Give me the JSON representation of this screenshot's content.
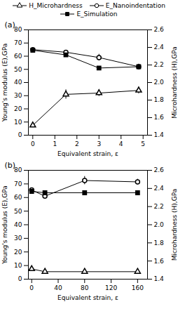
{
  "chart_data": [
    {
      "type": "line",
      "title": "(a)",
      "xlabel": "Equivalent strain, ε",
      "ylabel": "Young's modulus (E),GPa",
      "y2label": "Microhardness (H),GPa",
      "x": [
        0,
        1.5,
        3.0,
        4.8
      ],
      "xlim": [
        -0.2,
        5.2
      ],
      "xticks": [
        0,
        1,
        2,
        3,
        4,
        5
      ],
      "ylim": [
        0,
        80
      ],
      "yticks": [
        0,
        10,
        20,
        30,
        40,
        50,
        60,
        70,
        80
      ],
      "y2lim": [
        1.4,
        2.6
      ],
      "y2ticks": [
        1.4,
        1.6,
        1.8,
        {
          "value": 2.0,
          "label": "2.0"
        },
        2.2,
        2.4,
        2.6
      ],
      "legend": "top",
      "series": [
        {
          "name": "H_Microhardness",
          "color": "#000000",
          "marker": "triangle_open",
          "values": [
            7.5,
            31.0,
            32.0,
            34.0
          ],
          "errors": [
            1.0,
            3.5,
            2.5,
            2.5
          ]
        },
        {
          "name": "E_Nanoindentation",
          "color": "#000000",
          "marker": "circle_open",
          "values": [
            65.0,
            63.0,
            59.0,
            52.0
          ],
          "errors": [
            1.5,
            1.5,
            2.5,
            2.0
          ]
        },
        {
          "name": "E_Simulation",
          "color": "#000000",
          "marker": "square",
          "values": [
            64.5,
            61.0,
            51.0,
            52.0
          ],
          "errors": [
            0.5,
            0.8,
            0.8,
            0.8
          ]
        }
      ]
    },
    {
      "type": "line",
      "title": "(b)",
      "xlabel": "Equivalent strain, ε",
      "ylabel": "Young's modulus (E),GPa",
      "y2label": "Microhardness (H),GPa",
      "x": [
        0,
        20,
        80,
        160
      ],
      "xlim": [
        -5,
        175
      ],
      "xticks": [
        0,
        40,
        80,
        120,
        160
      ],
      "ylim": [
        0,
        80
      ],
      "yticks": [
        0,
        10,
        20,
        30,
        40,
        50,
        60,
        70,
        80
      ],
      "y2lim": [
        1.4,
        2.6
      ],
      "y2ticks": [
        1.4,
        1.6,
        1.8,
        {
          "value": 2.0,
          "label": "2.0"
        },
        2.2,
        2.4,
        2.6
      ],
      "legend": false,
      "series": [
        {
          "name": "H_Microhardness",
          "color": "#000000",
          "marker": "triangle_open",
          "values": [
            7.5,
            5.5,
            5.5,
            5.5
          ],
          "errors": [
            1.0,
            0.8,
            0.8,
            0.8
          ]
        },
        {
          "name": "E_Nanoindentation",
          "color": "#000000",
          "marker": "circle_open",
          "values": [
            65.5,
            61.0,
            72.5,
            71.5
          ],
          "errors": [
            1.5,
            1.5,
            3.0,
            2.0
          ]
        },
        {
          "name": "E_Simulation",
          "color": "#000000",
          "marker": "square",
          "values": [
            64.5,
            63.5,
            63.5,
            63.5
          ],
          "errors": [
            0.5,
            0.5,
            0.5,
            0.5
          ]
        }
      ]
    }
  ]
}
